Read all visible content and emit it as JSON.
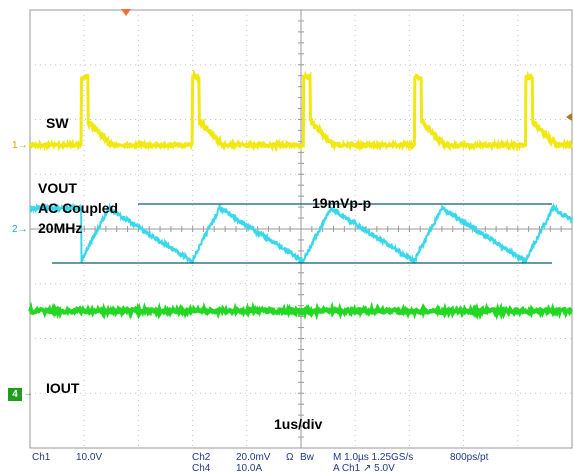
{
  "colors": {
    "ch1": "#f2e811",
    "ch2": "#38d8ea",
    "ch4": "#22d822",
    "grid": "#c8c8c8",
    "graticule": "#9a9a9a",
    "cursor": "#0b5d78",
    "trigger": "#f07030",
    "status_text": "#1f3a8a"
  },
  "labels": {
    "sw": "SW",
    "vout": "VOUT",
    "ac_coupled": "AC Coupled",
    "bw": "20MHz",
    "ripple": "19mVp-p",
    "iout": "IOUT",
    "timebase": "1us/div"
  },
  "markers": {
    "ch1": "1",
    "ch2": "2",
    "ch4": "4",
    "arrow": "→"
  },
  "status": {
    "ch1_name": "Ch1",
    "ch1_scale": "10.0V",
    "ch2_name": "Ch2",
    "ch2_scale": "20.0mV",
    "ohm": "Ω",
    "bw_flag": "Bw",
    "time_setting": "M 1.0µs 1.25GS/s",
    "record": "800ps/pt",
    "ch4_name": "Ch4",
    "ch4_scale": "10.0A",
    "trigger_info": "A  Ch1  ↗ 5.0V"
  },
  "chart_data": {
    "type": "line",
    "title": "",
    "xlabel": "1us/div",
    "ylabel": "",
    "x_divisions": 10,
    "y_divisions": 8,
    "time_per_div_us": 1,
    "switching_period_us": 2.0,
    "series": [
      {
        "name": "SW",
        "channel": 1,
        "volts_per_div": 10.0,
        "low_v": 0,
        "high_v": 12.5,
        "pulse_width_us": 0.12
      },
      {
        "name": "VOUT",
        "channel": 2,
        "coupling": "AC",
        "bandwidth": "20MHz",
        "mv_per_div": 20.0,
        "ripple_mv_pp": 19
      },
      {
        "name": "IOUT",
        "channel": 4,
        "amps_per_div": 10.0,
        "level_a": 10
      }
    ],
    "cursors": {
      "type": "horizontal",
      "delta_label": "19mVp-p"
    },
    "grid": true
  }
}
